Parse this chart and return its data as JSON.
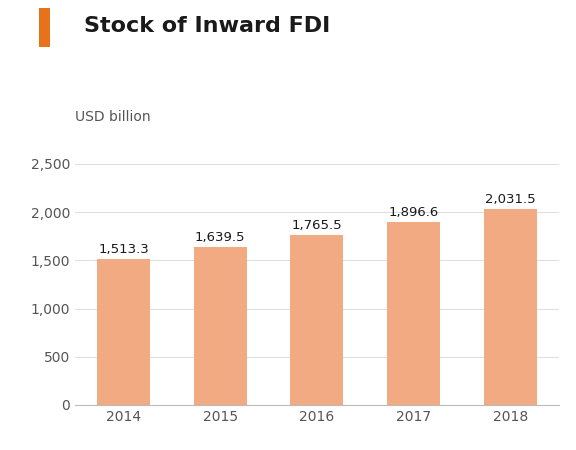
{
  "title": "Stock of Inward FDI",
  "ylabel": "USD billion",
  "years": [
    "2014",
    "2015",
    "2016",
    "2017",
    "2018"
  ],
  "values": [
    1513.3,
    1639.5,
    1765.5,
    1896.6,
    2031.5
  ],
  "labels": [
    "1,513.3",
    "1,639.5",
    "1,765.5",
    "1,896.6",
    "2,031.5"
  ],
  "bar_color": "#F2AA82",
  "accent_color": "#E8721C",
  "title_color": "#1a1a1a",
  "axis_label_color": "#555555",
  "background_color": "#ffffff",
  "ylim": [
    0,
    2800
  ],
  "yticks": [
    0,
    500,
    1000,
    1500,
    2000,
    2500
  ],
  "ytick_labels": [
    "0",
    "500",
    "1,000",
    "1,500",
    "2,000",
    "2,500"
  ],
  "title_fontsize": 16,
  "label_fontsize": 9.5,
  "tick_fontsize": 10,
  "ylabel_fontsize": 10
}
